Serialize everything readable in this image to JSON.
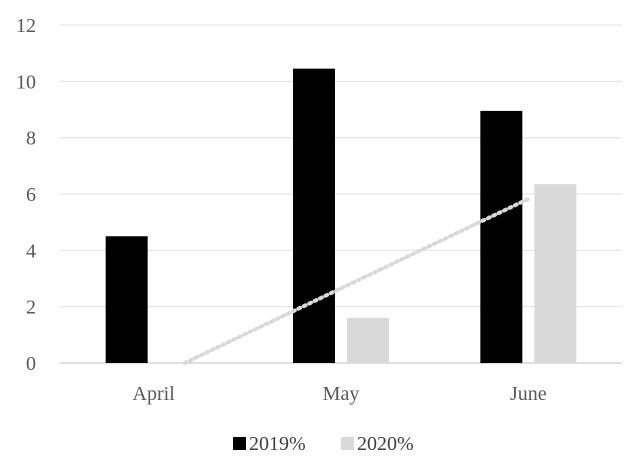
{
  "chart_data": {
    "type": "bar",
    "categories": [
      "April",
      "May",
      "June"
    ],
    "series": [
      {
        "name": "2019%",
        "values": [
          4.5,
          10.45,
          8.95
        ],
        "color": "#000000"
      },
      {
        "name": "2020%",
        "values": [
          0,
          1.6,
          6.35
        ],
        "color": "#d9d9d9"
      }
    ],
    "trendline": {
      "series": "2020%",
      "style": "dotted",
      "color": "#d9d9d9"
    },
    "ylim": [
      0,
      12
    ],
    "yticks": [
      "0",
      "2",
      "4",
      "6",
      "8",
      "10",
      "12"
    ],
    "grid": true,
    "legend_position": "bottom",
    "title": "",
    "xlabel": "",
    "ylabel": ""
  }
}
